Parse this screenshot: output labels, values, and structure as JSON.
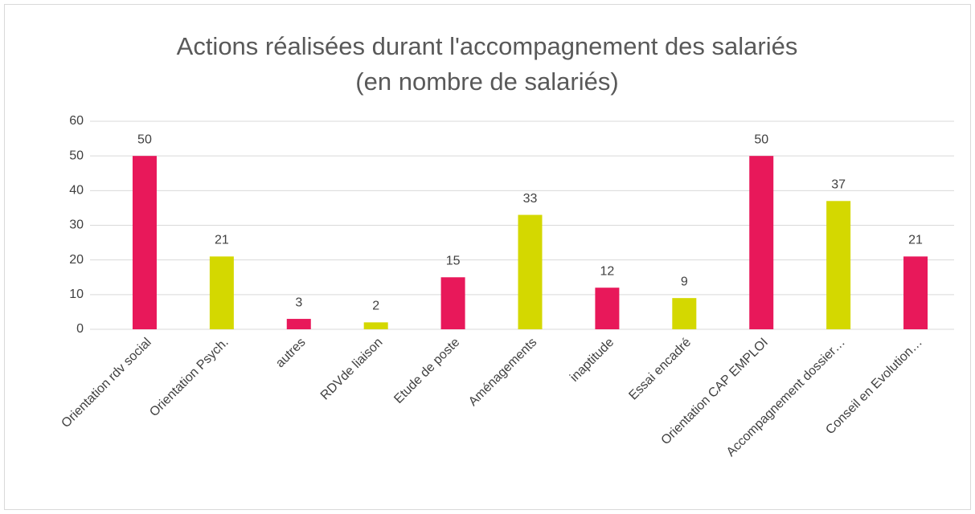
{
  "chart_data": {
    "type": "bar",
    "title": "Actions réalisées durant l'accompagnement des salariés (en nombre de salariés)",
    "categories": [
      "Orientation rdv social",
      "Orientation Psych.",
      "autres",
      "RDVde liaison",
      "Etude de poste",
      "Aménagements",
      "inaptitude",
      "Essai encadré",
      "Orientation CAP EMPLOI",
      "Accompagnement dossier…",
      "Conseil en Evolution…"
    ],
    "values": [
      50,
      21,
      3,
      2,
      15,
      33,
      12,
      9,
      50,
      37,
      21
    ],
    "colors": [
      "#e8185a",
      "#d4d800",
      "#e8185a",
      "#d4d800",
      "#e8185a",
      "#d4d800",
      "#e8185a",
      "#d4d800",
      "#e8185a",
      "#d4d800",
      "#e8185a"
    ],
    "ylim": [
      0,
      60
    ],
    "yticks": [
      0,
      10,
      20,
      30,
      40,
      50,
      60
    ],
    "grid": true
  }
}
